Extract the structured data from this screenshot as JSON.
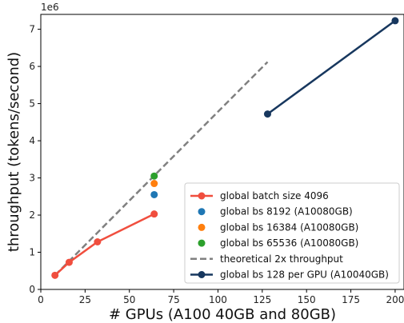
{
  "chart_data": {
    "type": "line",
    "title": "",
    "xlabel": "# GPUs (A100 40GB and 80GB)",
    "ylabel": "throughput (tokens/second)",
    "y_offset_label": "1e6",
    "xlim": [
      0,
      205
    ],
    "ylim": [
      0,
      7.4
    ],
    "x_ticks": [
      "0",
      "25",
      "50",
      "75",
      "100",
      "125",
      "150",
      "175",
      "200"
    ],
    "y_ticks": [
      "0",
      "1",
      "2",
      "3",
      "4",
      "5",
      "6",
      "7"
    ],
    "grid": false,
    "legend_position": "lower-right",
    "series": [
      {
        "name": "global batch size 4096",
        "kind": "line-marker",
        "color": "#f04e3e",
        "x": [
          8,
          16,
          32,
          64
        ],
        "y": [
          0.38,
          0.73,
          1.28,
          2.03
        ]
      },
      {
        "name": "global bs 8192 (A10080GB)",
        "kind": "point",
        "color": "#1f77b4",
        "x": [
          64
        ],
        "y": [
          2.55
        ]
      },
      {
        "name": "global bs 16384 (A10080GB)",
        "kind": "point",
        "color": "#ff7f0e",
        "x": [
          64
        ],
        "y": [
          2.85
        ]
      },
      {
        "name": "global bs 65536 (A10080GB)",
        "kind": "point",
        "color": "#2ca02c",
        "x": [
          64
        ],
        "y": [
          3.05
        ]
      },
      {
        "name": "theoretical 2x throughput",
        "kind": "dashed-line",
        "color": "#808080",
        "x": [
          8,
          128
        ],
        "y": [
          0.38,
          6.12
        ]
      },
      {
        "name": "global bs 128 per GPU (A10040GB)",
        "kind": "line-marker",
        "color": "#17375e",
        "x": [
          128,
          200
        ],
        "y": [
          4.72,
          7.23
        ]
      }
    ]
  }
}
